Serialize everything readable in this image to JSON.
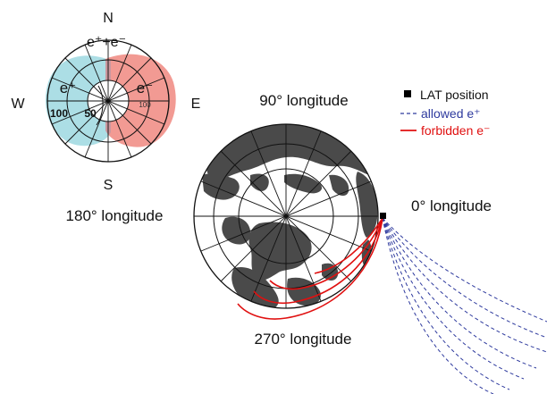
{
  "compass": {
    "north": "N",
    "south": "S",
    "west": "W",
    "east": "E",
    "top_label": "e⁺+e⁻",
    "positron_label": "e⁺",
    "electron_label": "e⁻",
    "ring_label_outer": "100",
    "ring_label_inner": "50",
    "ring_label_right": "100",
    "positron_color": "#9ed8e0",
    "electron_color": "#f08880"
  },
  "globe": {
    "label_90": "90° longitude",
    "label_180": "180° longitude",
    "label_0": "0° longitude",
    "label_270": "270° longitude",
    "land_color": "#4a4a4a"
  },
  "legend": {
    "lat_label": "LAT position",
    "allowed_label": "allowed e⁺",
    "forbidden_label": "forbidden e⁻",
    "allowed_color": "#2e3a9e",
    "forbidden_color": "#e01010"
  }
}
